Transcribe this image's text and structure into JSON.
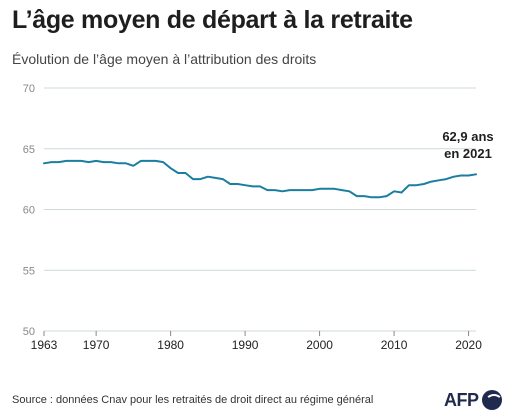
{
  "header": {
    "title": "L’âge moyen de départ à la retraite",
    "subtitle": "Évolution de l’âge moyen à l’attribution des droits"
  },
  "footer": {
    "source": "Source : données Cnav pour les retraités de droit direct au régime général",
    "logo_text": "AFP"
  },
  "colors": {
    "line": "#1a7ea0",
    "grid": "#cfd9dc",
    "axis_text": "#888888"
  },
  "chart_data": {
    "type": "line",
    "title": "L’âge moyen de départ à la retraite",
    "subtitle": "Évolution de l’âge moyen à l’attribution des droits",
    "xlabel": "",
    "ylabel": "",
    "xlim": [
      1963,
      2021
    ],
    "ylim": [
      50,
      70
    ],
    "yticks": [
      50,
      55,
      60,
      65,
      70
    ],
    "xticks": [
      1963,
      1970,
      1980,
      1990,
      2000,
      2010,
      2020
    ],
    "grid": "horizontal",
    "annotation": {
      "line1": "62,9 ans",
      "line2": "en 2021",
      "x": 2021,
      "y": 62.9
    },
    "series": [
      {
        "x": [
          1963,
          1964,
          1965,
          1966,
          1967,
          1968,
          1969,
          1970,
          1971,
          1972,
          1973,
          1974,
          1975,
          1976,
          1977,
          1978,
          1979,
          1980,
          1981,
          1982,
          1983,
          1984,
          1985,
          1986,
          1987,
          1988,
          1989,
          1990,
          1991,
          1992,
          1993,
          1994,
          1995,
          1996,
          1997,
          1998,
          1999,
          2000,
          2001,
          2002,
          2003,
          2004,
          2005,
          2006,
          2007,
          2008,
          2009,
          2010,
          2011,
          2012,
          2013,
          2014,
          2015,
          2016,
          2017,
          2018,
          2019,
          2020,
          2021
        ],
        "values": [
          63.8,
          63.9,
          63.9,
          64.0,
          64.0,
          64.0,
          63.9,
          64.0,
          63.9,
          63.9,
          63.8,
          63.8,
          63.6,
          64.0,
          64.0,
          64.0,
          63.9,
          63.4,
          63.0,
          63.0,
          62.5,
          62.5,
          62.7,
          62.6,
          62.5,
          62.1,
          62.1,
          62.0,
          61.9,
          61.9,
          61.6,
          61.6,
          61.5,
          61.6,
          61.6,
          61.6,
          61.6,
          61.7,
          61.7,
          61.7,
          61.6,
          61.5,
          61.1,
          61.1,
          61.0,
          61.0,
          61.1,
          61.5,
          61.4,
          62.0,
          62.0,
          62.1,
          62.3,
          62.4,
          62.5,
          62.7,
          62.8,
          62.8,
          62.9
        ]
      }
    ]
  }
}
